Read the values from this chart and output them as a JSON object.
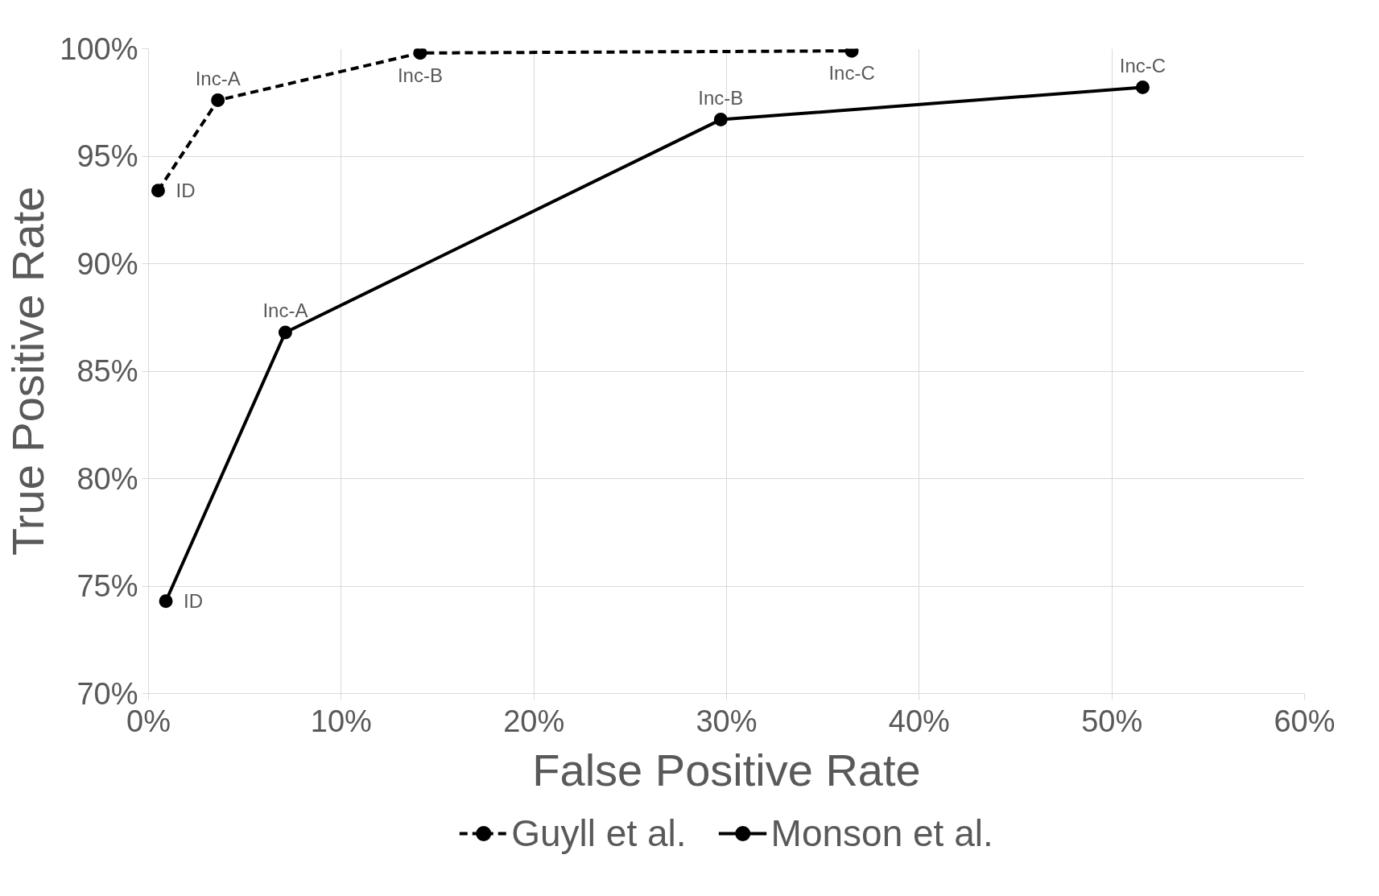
{
  "chart_data": {
    "type": "line",
    "xlabel": "False Positive Rate",
    "ylabel": "True Positive Rate",
    "xlim": [
      0,
      60
    ],
    "ylim": [
      70,
      100
    ],
    "xticks": [
      {
        "value": 0,
        "label": "0%"
      },
      {
        "value": 10,
        "label": "10%"
      },
      {
        "value": 20,
        "label": "20%"
      },
      {
        "value": 30,
        "label": "30%"
      },
      {
        "value": 40,
        "label": "40%"
      },
      {
        "value": 50,
        "label": "50%"
      },
      {
        "value": 60,
        "label": "60%"
      }
    ],
    "yticks": [
      {
        "value": 70,
        "label": "70%"
      },
      {
        "value": 75,
        "label": "75%"
      },
      {
        "value": 80,
        "label": "80%"
      },
      {
        "value": 85,
        "label": "85%"
      },
      {
        "value": 90,
        "label": "90%"
      },
      {
        "value": 95,
        "label": "95%"
      },
      {
        "value": 100,
        "label": "100%"
      }
    ],
    "series": [
      {
        "name": "Guyll et al.",
        "color": "#000000",
        "line_style": "dashed",
        "x": [
          0.5,
          3.6,
          14.1,
          36.5
        ],
        "values": [
          93.4,
          97.6,
          99.8,
          99.9
        ]
      },
      {
        "name": "Monson et al.",
        "color": "#000000",
        "line_style": "solid",
        "x": [
          0.9,
          7.1,
          29.7,
          51.6
        ],
        "values": [
          74.3,
          86.8,
          96.7,
          98.2
        ]
      }
    ],
    "annotations": [
      {
        "text": "ID",
        "x": 0.5,
        "y": 93.4
      },
      {
        "text": "Inc-A",
        "x": 3.6,
        "y": 97.6
      },
      {
        "text": "Inc-B",
        "x": 14.1,
        "y": 99.8
      },
      {
        "text": "Inc-C",
        "x": 36.5,
        "y": 99.9
      },
      {
        "text": "ID",
        "x": 0.9,
        "y": 74.3
      },
      {
        "text": "Inc-A",
        "x": 7.1,
        "y": 86.8
      },
      {
        "text": "Inc-B",
        "x": 29.7,
        "y": 96.7
      },
      {
        "text": "Inc-C",
        "x": 51.6,
        "y": 98.2
      }
    ],
    "marker": "circle",
    "grid": true,
    "legend": "bottom"
  }
}
